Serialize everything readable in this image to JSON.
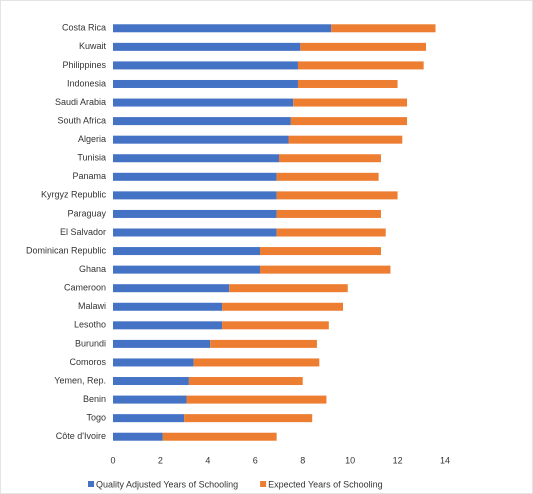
{
  "chart_data": {
    "type": "stacked-bar-horizontal",
    "categories": [
      "Costa Rica",
      "Kuwait",
      "Philippines",
      "Indonesia",
      "Saudi Arabia",
      "South Africa",
      "Algeria",
      "Tunisia",
      "Panama",
      "Kyrgyz Republic",
      "Paraguay",
      "El Salvador",
      "Dominican Republic",
      "Ghana",
      "Cameroon",
      "Malawi",
      "Lesotho",
      "Burundi",
      "Comoros",
      "Yemen, Rep.",
      "Benin",
      "Togo",
      "Côte d'Ivoire"
    ],
    "series": [
      {
        "name": "Quality Adjusted Years of Schooling",
        "color": "#4472c4",
        "values": [
          9.2,
          7.9,
          7.8,
          7.8,
          7.6,
          7.5,
          7.4,
          7.0,
          6.9,
          6.9,
          6.9,
          6.9,
          6.2,
          6.2,
          4.9,
          4.6,
          4.6,
          4.1,
          3.4,
          3.2,
          3.1,
          3.0,
          2.1
        ]
      },
      {
        "name": "Expected Years of Schooling",
        "color": "#ed7d31",
        "values": [
          4.4,
          5.3,
          5.3,
          4.2,
          4.8,
          4.9,
          4.8,
          4.3,
          4.3,
          5.1,
          4.4,
          4.6,
          5.1,
          5.5,
          5.0,
          5.1,
          4.5,
          4.5,
          5.3,
          4.8,
          5.9,
          5.4,
          4.8
        ]
      }
    ],
    "xlim": [
      0,
      14
    ],
    "xticks": [
      0,
      2,
      4,
      6,
      8,
      10,
      12,
      14
    ],
    "legend": "bottom"
  }
}
